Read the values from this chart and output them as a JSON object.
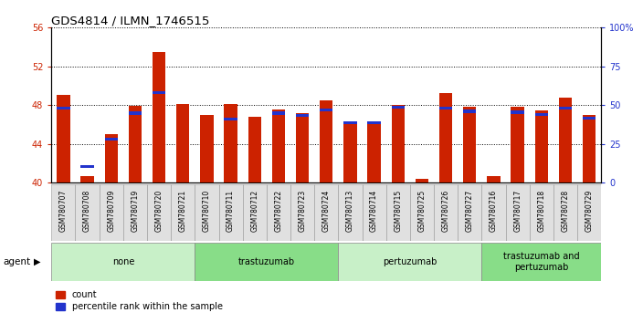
{
  "title": "GDS4814 / ILMN_1746515",
  "samples": [
    "GSM780707",
    "GSM780708",
    "GSM780709",
    "GSM780719",
    "GSM780720",
    "GSM780721",
    "GSM780710",
    "GSM780711",
    "GSM780712",
    "GSM780722",
    "GSM780723",
    "GSM780724",
    "GSM780713",
    "GSM780714",
    "GSM780715",
    "GSM780725",
    "GSM780726",
    "GSM780727",
    "GSM780716",
    "GSM780717",
    "GSM780718",
    "GSM780728",
    "GSM780729"
  ],
  "count_values": [
    49.0,
    40.7,
    45.0,
    47.9,
    53.5,
    48.1,
    47.0,
    48.1,
    46.8,
    47.5,
    47.2,
    48.5,
    46.3,
    46.2,
    48.0,
    40.4,
    49.2,
    47.8,
    40.7,
    47.8,
    47.4,
    48.8,
    47.0
  ],
  "percentile_values": [
    47.5,
    41.5,
    44.3,
    47.0,
    49.1,
    null,
    null,
    46.4,
    null,
    47.0,
    46.8,
    47.3,
    46.0,
    46.0,
    47.6,
    null,
    47.5,
    47.2,
    null,
    47.1,
    46.9,
    47.5,
    46.5
  ],
  "groups": [
    {
      "label": "none",
      "start": 0,
      "end": 6,
      "color": "#c8f0c8"
    },
    {
      "label": "trastuzumab",
      "start": 6,
      "end": 12,
      "color": "#88dd88"
    },
    {
      "label": "pertuzumab",
      "start": 12,
      "end": 18,
      "color": "#c8f0c8"
    },
    {
      "label": "trastuzumab and\npertuzumab",
      "start": 18,
      "end": 23,
      "color": "#88dd88"
    }
  ],
  "ymin": 40,
  "ymax": 56,
  "yticks_left": [
    40,
    44,
    48,
    52,
    56
  ],
  "yticks_right": [
    0,
    25,
    50,
    75,
    100
  ],
  "bar_color": "#cc2200",
  "percentile_color": "#2233cc",
  "bar_width": 0.55
}
